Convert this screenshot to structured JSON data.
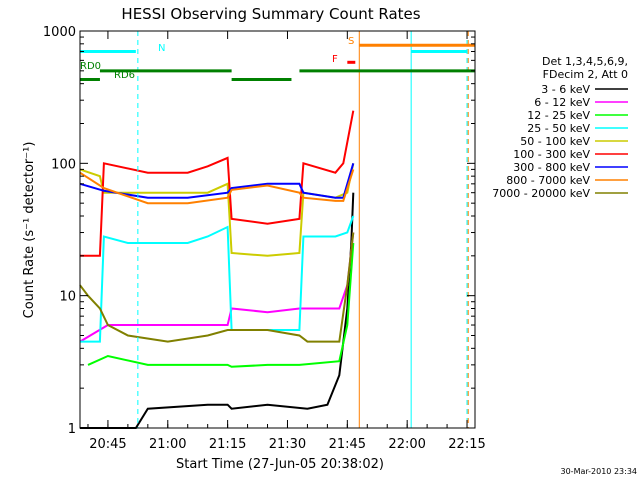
{
  "chart_data": {
    "type": "line",
    "title": "HESSI Observing Summary Count Rates",
    "xlabel": "Start Time (27-Jun-05 20:38:02)",
    "ylabel": "Count Rate (s⁻¹ detector⁻¹)",
    "yscale": "log",
    "ylim": [
      1,
      1000
    ],
    "xlim": [
      "20:38",
      "22:17"
    ],
    "x_ticks": [
      "20:45",
      "21:00",
      "21:15",
      "21:30",
      "21:45",
      "22:00",
      "22:15"
    ],
    "y_ticks": [
      "1",
      "10",
      "100",
      "1000"
    ],
    "legend_title_lines": [
      "Det 1,3,4,5,6,9,",
      "FDecim 2, Att 0"
    ],
    "legend_position": "right",
    "footer": "30-Mar-2010 23:34",
    "series": [
      {
        "name": "3 - 6 keV",
        "color": "#000000",
        "x": [
          "20:38",
          "20:45",
          "20:52",
          "20:55",
          "21:10",
          "21:15",
          "21:16",
          "21:25",
          "21:35",
          "21:40",
          "21:43",
          "21:45",
          "21:46",
          "21:46.5"
        ],
        "y": [
          1,
          1,
          1,
          1.4,
          1.5,
          1.5,
          1.4,
          1.5,
          1.4,
          1.5,
          2.5,
          8,
          25,
          60
        ]
      },
      {
        "name": "6 - 12 keV",
        "color": "#ff00ff",
        "x": [
          "20:38",
          "20:45",
          "21:00",
          "21:15",
          "21:16",
          "21:25",
          "21:33",
          "21:43",
          "21:45",
          "21:46.5"
        ],
        "y": [
          4.5,
          6,
          6,
          6,
          8,
          7.5,
          8,
          8,
          12,
          30
        ]
      },
      {
        "name": "12 - 25 keV",
        "color": "#00ff00",
        "x": [
          "20:40",
          "20:45",
          "20:55",
          "21:15",
          "21:16",
          "21:25",
          "21:33",
          "21:43",
          "21:45",
          "21:46.5"
        ],
        "y": [
          3,
          3.5,
          3,
          3,
          2.9,
          3,
          3,
          3.2,
          6,
          25
        ]
      },
      {
        "name": "25 - 50 keV",
        "color": "#00ffff",
        "x": [
          "20:38",
          "20:43",
          "20:44",
          "20:50",
          "21:05",
          "21:10",
          "21:15",
          "21:16",
          "21:25",
          "21:33",
          "21:34",
          "21:42",
          "21:45",
          "21:46.5"
        ],
        "y": [
          4.5,
          4.5,
          28,
          25,
          25,
          28,
          33,
          5.5,
          5.5,
          5.5,
          28,
          28,
          30,
          40
        ]
      },
      {
        "name": "50 - 100 keV",
        "color": "#cccc00",
        "x": [
          "20:38",
          "20:43",
          "20:44",
          "21:00",
          "21:10",
          "21:15",
          "21:16",
          "21:25",
          "21:33",
          "21:34",
          "21:42",
          "21:45",
          "21:46.5"
        ],
        "y": [
          90,
          80,
          60,
          60,
          60,
          70,
          21,
          20,
          21,
          60,
          55,
          60,
          100
        ]
      },
      {
        "name": "100 - 300 keV",
        "color": "#ff0000",
        "x": [
          "20:38",
          "20:43",
          "20:44",
          "20:55",
          "21:05",
          "21:10",
          "21:15",
          "21:16",
          "21:25",
          "21:33",
          "21:34",
          "21:42",
          "21:44",
          "21:46.5"
        ],
        "y": [
          20,
          20,
          100,
          85,
          85,
          95,
          110,
          38,
          35,
          38,
          100,
          85,
          100,
          250
        ]
      },
      {
        "name": "300 - 800 keV",
        "color": "#0000ff",
        "x": [
          "20:38",
          "20:44",
          "20:55",
          "21:05",
          "21:15",
          "21:16",
          "21:25",
          "21:33",
          "21:34",
          "21:42",
          "21:44",
          "21:46.5"
        ],
        "y": [
          70,
          62,
          55,
          55,
          60,
          65,
          70,
          70,
          60,
          55,
          55,
          100
        ]
      },
      {
        "name": "800 - 7000 keV",
        "color": "#ff8000",
        "x": [
          "20:38",
          "20:44",
          "20:55",
          "21:05",
          "21:15",
          "21:16",
          "21:25",
          "21:33",
          "21:34",
          "21:42",
          "21:44",
          "21:46.5"
        ],
        "y": [
          85,
          65,
          50,
          50,
          55,
          63,
          68,
          60,
          55,
          52,
          52,
          90
        ]
      },
      {
        "name": "7000 - 20000 keV",
        "color": "#808000",
        "x": [
          "20:38",
          "20:40",
          "20:43",
          "20:45",
          "20:50",
          "21:00",
          "21:10",
          "21:15",
          "21:16",
          "21:25",
          "21:33",
          "21:35",
          "21:43",
          "21:45",
          "21:46.5"
        ],
        "y": [
          12,
          10,
          8,
          6,
          5,
          4.5,
          5,
          5.5,
          5.5,
          5.5,
          5,
          4.5,
          4.5,
          12,
          30
        ]
      }
    ],
    "annotations": [
      {
        "text": "N",
        "color": "#00ffff"
      },
      {
        "text": "RD0",
        "color": "#008000"
      },
      {
        "text": "RD6",
        "color": "#008000"
      },
      {
        "text": "S",
        "color": "#ff8000"
      },
      {
        "text": "F",
        "color": "#ff0000"
      }
    ],
    "flag_bars": [
      {
        "color": "#00ffff",
        "level": 700,
        "segments": [
          [
            "20:38",
            "20:52"
          ],
          [
            "22:01",
            "22:15"
          ]
        ]
      },
      {
        "color": "#008000",
        "level": 500,
        "segments": [
          [
            "20:43",
            "21:16"
          ],
          [
            "21:33",
            "22:17"
          ]
        ]
      },
      {
        "color": "#008000",
        "level": 430,
        "segments": [
          [
            "20:38",
            "20:43"
          ],
          [
            "21:16",
            "21:31"
          ]
        ]
      },
      {
        "color": "#ff8000",
        "level": 780,
        "segments": [
          [
            "21:48",
            "22:17"
          ]
        ]
      },
      {
        "color": "#ff0000",
        "level": 580,
        "segments": [
          [
            "21:45",
            "21:47"
          ]
        ]
      }
    ],
    "vlines": [
      {
        "x": "20:52.5",
        "color": "#00ffff",
        "style": "dashed"
      },
      {
        "x": "21:48",
        "color": "#ff8000",
        "style": "solid"
      },
      {
        "x": "22:01",
        "color": "#00ffff",
        "style": "solid"
      },
      {
        "x": "22:15",
        "color": "#00ffff",
        "style": "dashed"
      },
      {
        "x": "22:15.3",
        "color": "#ff8000",
        "style": "dashed"
      }
    ]
  }
}
